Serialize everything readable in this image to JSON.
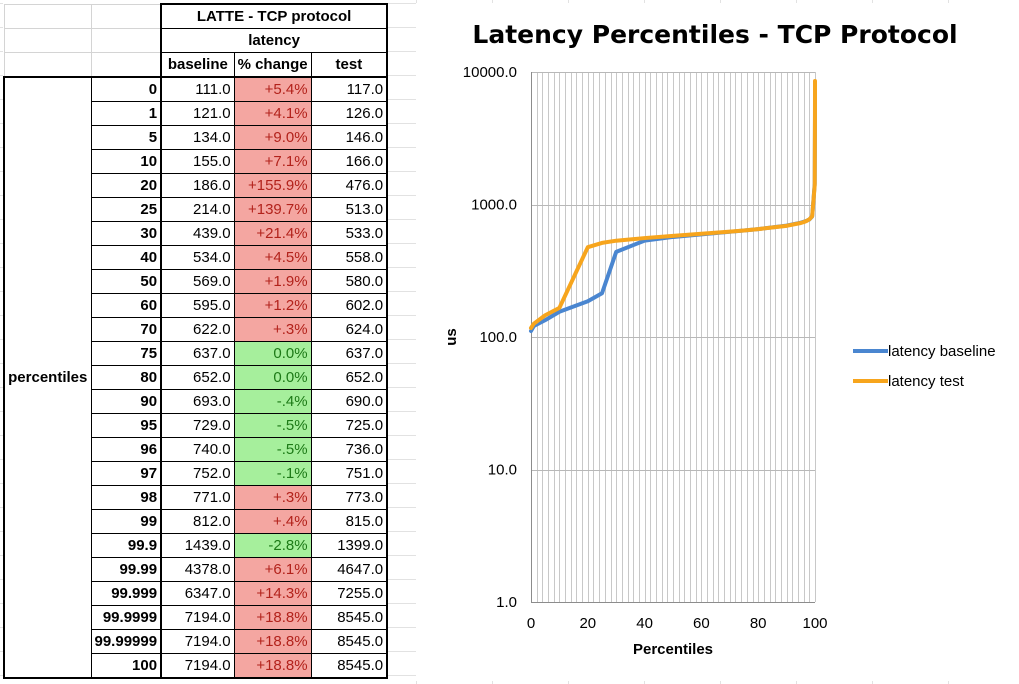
{
  "table": {
    "header_title": "LATTE - TCP protocol",
    "header_group": "latency",
    "columns": [
      "baseline",
      "% change",
      "test"
    ],
    "side_label": "percentiles",
    "rows": [
      {
        "p": "0",
        "baseline": "111.0",
        "change": "+5.4%",
        "test": "117.0",
        "dir": "up"
      },
      {
        "p": "1",
        "baseline": "121.0",
        "change": "+4.1%",
        "test": "126.0",
        "dir": "up"
      },
      {
        "p": "5",
        "baseline": "134.0",
        "change": "+9.0%",
        "test": "146.0",
        "dir": "up"
      },
      {
        "p": "10",
        "baseline": "155.0",
        "change": "+7.1%",
        "test": "166.0",
        "dir": "up"
      },
      {
        "p": "20",
        "baseline": "186.0",
        "change": "+155.9%",
        "test": "476.0",
        "dir": "up"
      },
      {
        "p": "25",
        "baseline": "214.0",
        "change": "+139.7%",
        "test": "513.0",
        "dir": "up"
      },
      {
        "p": "30",
        "baseline": "439.0",
        "change": "+21.4%",
        "test": "533.0",
        "dir": "up"
      },
      {
        "p": "40",
        "baseline": "534.0",
        "change": "+4.5%",
        "test": "558.0",
        "dir": "up"
      },
      {
        "p": "50",
        "baseline": "569.0",
        "change": "+1.9%",
        "test": "580.0",
        "dir": "up"
      },
      {
        "p": "60",
        "baseline": "595.0",
        "change": "+1.2%",
        "test": "602.0",
        "dir": "up"
      },
      {
        "p": "70",
        "baseline": "622.0",
        "change": "+.3%",
        "test": "624.0",
        "dir": "up"
      },
      {
        "p": "75",
        "baseline": "637.0",
        "change": "0.0%",
        "test": "637.0",
        "dir": "down"
      },
      {
        "p": "80",
        "baseline": "652.0",
        "change": "0.0%",
        "test": "652.0",
        "dir": "down"
      },
      {
        "p": "90",
        "baseline": "693.0",
        "change": "-.4%",
        "test": "690.0",
        "dir": "down"
      },
      {
        "p": "95",
        "baseline": "729.0",
        "change": "-.5%",
        "test": "725.0",
        "dir": "down"
      },
      {
        "p": "96",
        "baseline": "740.0",
        "change": "-.5%",
        "test": "736.0",
        "dir": "down"
      },
      {
        "p": "97",
        "baseline": "752.0",
        "change": "-.1%",
        "test": "751.0",
        "dir": "down"
      },
      {
        "p": "98",
        "baseline": "771.0",
        "change": "+.3%",
        "test": "773.0",
        "dir": "up"
      },
      {
        "p": "99",
        "baseline": "812.0",
        "change": "+.4%",
        "test": "815.0",
        "dir": "up"
      },
      {
        "p": "99.9",
        "baseline": "1439.0",
        "change": "-2.8%",
        "test": "1399.0",
        "dir": "down"
      },
      {
        "p": "99.99",
        "baseline": "4378.0",
        "change": "+6.1%",
        "test": "4647.0",
        "dir": "up"
      },
      {
        "p": "99.999",
        "baseline": "6347.0",
        "change": "+14.3%",
        "test": "7255.0",
        "dir": "up"
      },
      {
        "p": "99.9999",
        "baseline": "7194.0",
        "change": "+18.8%",
        "test": "8545.0",
        "dir": "up"
      },
      {
        "p": "99.99999",
        "baseline": "7194.0",
        "change": "+18.8%",
        "test": "8545.0",
        "dir": "up"
      },
      {
        "p": "100",
        "baseline": "7194.0",
        "change": "+18.8%",
        "test": "8545.0",
        "dir": "up"
      }
    ]
  },
  "chart_data": {
    "type": "line",
    "title": "Latency Percentiles - TCP Protocol",
    "xlabel": "Percentiles",
    "ylabel": "us",
    "y_scale": "log",
    "xlim": [
      0,
      100
    ],
    "ylim": [
      1,
      10000
    ],
    "x_ticks": [
      "0",
      "20",
      "40",
      "60",
      "80",
      "100"
    ],
    "y_ticks": [
      "1.0",
      "10.0",
      "100.0",
      "1000.0",
      "10000.0"
    ],
    "grid": true,
    "legend_position": "right",
    "x": [
      0,
      1,
      5,
      10,
      20,
      25,
      30,
      40,
      50,
      60,
      70,
      75,
      80,
      90,
      95,
      96,
      97,
      98,
      99,
      99.9,
      99.99,
      99.999,
      99.9999,
      99.99999,
      100
    ],
    "series": [
      {
        "name": "latency baseline",
        "color": "#4a86d0",
        "values": [
          111,
          121,
          134,
          155,
          186,
          214,
          439,
          534,
          569,
          595,
          622,
          637,
          652,
          693,
          729,
          740,
          752,
          771,
          812,
          1439,
          4378,
          6347,
          7194,
          7194,
          7194
        ]
      },
      {
        "name": "latency test",
        "color": "#f7a51d",
        "values": [
          117,
          126,
          146,
          166,
          476,
          513,
          533,
          558,
          580,
          602,
          624,
          637,
          652,
          690,
          725,
          736,
          751,
          773,
          815,
          1399,
          4647,
          7255,
          8545,
          8545,
          8545
        ]
      }
    ]
  }
}
